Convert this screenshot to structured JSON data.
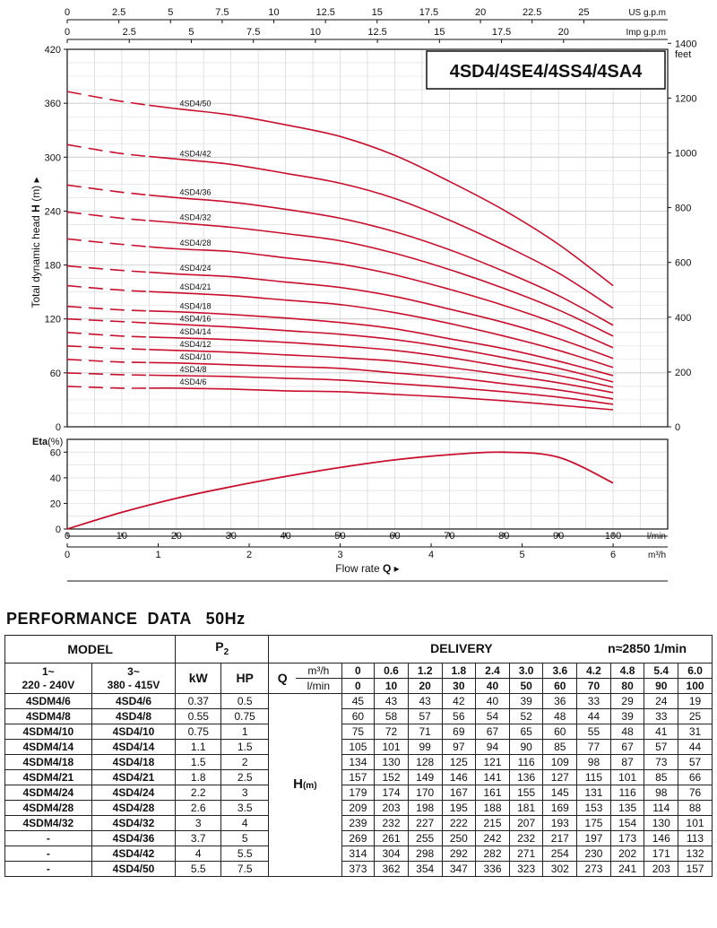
{
  "chart_data": [
    {
      "type": "line",
      "title": "4SD4/4SE4/4SS4/4SA4",
      "ylabel": "Total dynamic head H (m)",
      "ylabel_parts": {
        "text": "Total dynamic head",
        "symbol": "H",
        "unit": "(m)"
      },
      "ylim": [
        0,
        420
      ],
      "yticks": [
        "0",
        "60",
        "120",
        "180",
        "240",
        "300",
        "360",
        "420"
      ],
      "y2label": "feet",
      "y2ticks": [
        "0",
        "200",
        "400",
        "600",
        "800",
        "1000",
        "1200",
        "1400"
      ],
      "x_top_usgpm_label": "US g.p.m",
      "x_top_usgpm_ticks": [
        "0",
        "2.5",
        "5",
        "7.5",
        "10",
        "12.5",
        "15",
        "17.5",
        "20",
        "22.5",
        "25"
      ],
      "x_top_impgpm_label": "Imp g.p.m",
      "x_top_impgpm_ticks": [
        "0",
        "2.5",
        "5",
        "7.5",
        "10",
        "12.5",
        "15",
        "17.5",
        "20"
      ],
      "xlim": [
        0,
        110
      ],
      "grid": true,
      "dashed_region": [
        0,
        15
      ],
      "series": [
        {
          "name": "4SD4/50",
          "x": [
            0,
            10,
            20,
            30,
            40,
            50,
            60,
            70,
            80,
            90,
            100
          ],
          "values": [
            373,
            362,
            354,
            347,
            336,
            323,
            302,
            273,
            241,
            203,
            157
          ]
        },
        {
          "name": "4SD4/42",
          "x": [
            0,
            10,
            20,
            30,
            40,
            50,
            60,
            70,
            80,
            90,
            100
          ],
          "values": [
            314,
            304,
            298,
            292,
            282,
            271,
            254,
            230,
            202,
            171,
            132
          ]
        },
        {
          "name": "4SD4/36",
          "x": [
            0,
            10,
            20,
            30,
            40,
            50,
            60,
            70,
            80,
            90,
            100
          ],
          "values": [
            269,
            261,
            255,
            250,
            242,
            232,
            217,
            197,
            173,
            146,
            113
          ]
        },
        {
          "name": "4SD4/32",
          "x": [
            0,
            10,
            20,
            30,
            40,
            50,
            60,
            70,
            80,
            90,
            100
          ],
          "values": [
            239,
            232,
            227,
            222,
            215,
            207,
            193,
            175,
            154,
            130,
            101
          ]
        },
        {
          "name": "4SD4/28",
          "x": [
            0,
            10,
            20,
            30,
            40,
            50,
            60,
            70,
            80,
            90,
            100
          ],
          "values": [
            209,
            203,
            198,
            195,
            188,
            181,
            169,
            153,
            135,
            114,
            88
          ]
        },
        {
          "name": "4SD4/24",
          "x": [
            0,
            10,
            20,
            30,
            40,
            50,
            60,
            70,
            80,
            90,
            100
          ],
          "values": [
            179,
            174,
            170,
            167,
            161,
            155,
            145,
            131,
            116,
            98,
            76
          ]
        },
        {
          "name": "4SD4/21",
          "x": [
            0,
            10,
            20,
            30,
            40,
            50,
            60,
            70,
            80,
            90,
            100
          ],
          "values": [
            157,
            152,
            149,
            146,
            141,
            136,
            127,
            115,
            101,
            85,
            66
          ]
        },
        {
          "name": "4SD4/18",
          "x": [
            0,
            10,
            20,
            30,
            40,
            50,
            60,
            70,
            80,
            90,
            100
          ],
          "values": [
            134,
            130,
            128,
            125,
            121,
            116,
            109,
            98,
            87,
            73,
            57
          ]
        },
        {
          "name": "4SD4/16",
          "x": [
            0,
            10,
            20,
            30,
            40,
            50,
            60,
            70,
            80,
            90,
            100
          ],
          "values": [
            120,
            117,
            114,
            111,
            107,
            103,
            97,
            88,
            77,
            65,
            50
          ]
        },
        {
          "name": "4SD4/14",
          "x": [
            0,
            10,
            20,
            30,
            40,
            50,
            60,
            70,
            80,
            90,
            100
          ],
          "values": [
            105,
            101,
            99,
            97,
            94,
            90,
            85,
            77,
            67,
            57,
            44
          ]
        },
        {
          "name": "4SD4/12",
          "x": [
            0,
            10,
            20,
            30,
            40,
            50,
            60,
            70,
            80,
            90,
            100
          ],
          "values": [
            90,
            87,
            85,
            83,
            80,
            77,
            73,
            66,
            58,
            49,
            38
          ]
        },
        {
          "name": "4SD4/10",
          "x": [
            0,
            10,
            20,
            30,
            40,
            50,
            60,
            70,
            80,
            90,
            100
          ],
          "values": [
            75,
            72,
            71,
            69,
            67,
            65,
            60,
            55,
            48,
            41,
            31
          ]
        },
        {
          "name": "4SD4/8",
          "x": [
            0,
            10,
            20,
            30,
            40,
            50,
            60,
            70,
            80,
            90,
            100
          ],
          "values": [
            60,
            58,
            57,
            56,
            54,
            52,
            48,
            44,
            39,
            33,
            25
          ]
        },
        {
          "name": "4SD4/6",
          "x": [
            0,
            10,
            20,
            30,
            40,
            50,
            60,
            70,
            80,
            90,
            100
          ],
          "values": [
            45,
            43,
            43,
            42,
            40,
            39,
            36,
            33,
            29,
            24,
            19
          ]
        }
      ]
    },
    {
      "type": "line",
      "ylabel": "Eta(%)",
      "ylabel_parts": {
        "text": "Eta",
        "unit": "(%)"
      },
      "ylim": [
        0,
        70
      ],
      "yticks": [
        "0",
        "20",
        "40",
        "60"
      ],
      "xlabel": "Flow rate Q",
      "xlabel_parts": {
        "text": "Flow rate",
        "symbol": "Q"
      },
      "x_lmin_label": "l/min",
      "x_lmin_ticks": [
        "0",
        "10",
        "20",
        "30",
        "40",
        "50",
        "60",
        "70",
        "80",
        "90",
        "100"
      ],
      "x_m3h_label": "m³/h",
      "x_m3h_ticks": [
        "0",
        "1",
        "2",
        "3",
        "4",
        "5",
        "6"
      ],
      "xlim": [
        0,
        110
      ],
      "grid": true,
      "series": [
        {
          "name": "Eta",
          "x": [
            0,
            10,
            20,
            30,
            40,
            50,
            60,
            70,
            80,
            90,
            100
          ],
          "values": [
            0,
            13,
            24,
            33,
            41,
            48,
            54,
            58,
            60,
            56,
            36
          ]
        }
      ]
    }
  ],
  "performance": {
    "title": "PERFORMANCE  DATA   50Hz",
    "model_header": "MODEL",
    "p2_header": "P",
    "p2_sub": "2",
    "delivery_header": "DELIVERY",
    "speed": "n≈2850 1/min",
    "col_1ph": [
      "1~",
      "220 - 240V"
    ],
    "col_3ph": [
      "3~",
      "380 - 415V"
    ],
    "kw_label": "kW",
    "hp_label": "HP",
    "q_label": "Q",
    "unit_m3h": "m³/h",
    "unit_lmin": "l/min",
    "h_label": "H",
    "h_unit": "(m)",
    "q_m3h": [
      "0",
      "0.6",
      "1.2",
      "1.8",
      "2.4",
      "3.0",
      "3.6",
      "4.2",
      "4.8",
      "5.4",
      "6.0"
    ],
    "q_lmin": [
      "0",
      "10",
      "20",
      "30",
      "40",
      "50",
      "60",
      "70",
      "80",
      "90",
      "100"
    ],
    "rows": [
      {
        "m1": "4SDM4/6",
        "m3": "4SD4/6",
        "kw": "0.37",
        "hp": "0.5",
        "h": [
          "45",
          "43",
          "43",
          "42",
          "40",
          "39",
          "36",
          "33",
          "29",
          "24",
          "19"
        ]
      },
      {
        "m1": "4SDM4/8",
        "m3": "4SD4/8",
        "kw": "0.55",
        "hp": "0.75",
        "h": [
          "60",
          "58",
          "57",
          "56",
          "54",
          "52",
          "48",
          "44",
          "39",
          "33",
          "25"
        ]
      },
      {
        "m1": "4SDM4/10",
        "m3": "4SD4/10",
        "kw": "0.75",
        "hp": "1",
        "h": [
          "75",
          "72",
          "71",
          "69",
          "67",
          "65",
          "60",
          "55",
          "48",
          "41",
          "31"
        ]
      },
      {
        "m1": "4SDM4/14",
        "m3": "4SD4/14",
        "kw": "1.1",
        "hp": "1.5",
        "h": [
          "105",
          "101",
          "99",
          "97",
          "94",
          "90",
          "85",
          "77",
          "67",
          "57",
          "44"
        ]
      },
      {
        "m1": "4SDM4/18",
        "m3": "4SD4/18",
        "kw": "1.5",
        "hp": "2",
        "h": [
          "134",
          "130",
          "128",
          "125",
          "121",
          "116",
          "109",
          "98",
          "87",
          "73",
          "57"
        ]
      },
      {
        "m1": "4SDM4/21",
        "m3": "4SD4/21",
        "kw": "1.8",
        "hp": "2.5",
        "h": [
          "157",
          "152",
          "149",
          "146",
          "141",
          "136",
          "127",
          "115",
          "101",
          "85",
          "66"
        ]
      },
      {
        "m1": "4SDM4/24",
        "m3": "4SD4/24",
        "kw": "2.2",
        "hp": "3",
        "h": [
          "179",
          "174",
          "170",
          "167",
          "161",
          "155",
          "145",
          "131",
          "116",
          "98",
          "76"
        ]
      },
      {
        "m1": "4SDM4/28",
        "m3": "4SD4/28",
        "kw": "2.6",
        "hp": "3.5",
        "h": [
          "209",
          "203",
          "198",
          "195",
          "188",
          "181",
          "169",
          "153",
          "135",
          "114",
          "88"
        ]
      },
      {
        "m1": "4SDM4/32",
        "m3": "4SD4/32",
        "kw": "3",
        "hp": "4",
        "h": [
          "239",
          "232",
          "227",
          "222",
          "215",
          "207",
          "193",
          "175",
          "154",
          "130",
          "101"
        ]
      },
      {
        "m1": "-",
        "m3": "4SD4/36",
        "kw": "3.7",
        "hp": "5",
        "h": [
          "269",
          "261",
          "255",
          "250",
          "242",
          "232",
          "217",
          "197",
          "173",
          "146",
          "113"
        ]
      },
      {
        "m1": "-",
        "m3": "4SD4/42",
        "kw": "4",
        "hp": "5.5",
        "h": [
          "314",
          "304",
          "298",
          "292",
          "282",
          "271",
          "254",
          "230",
          "202",
          "171",
          "132"
        ]
      },
      {
        "m1": "-",
        "m3": "4SD4/50",
        "kw": "5.5",
        "hp": "7.5",
        "h": [
          "373",
          "362",
          "354",
          "347",
          "336",
          "323",
          "302",
          "273",
          "241",
          "203",
          "157"
        ]
      }
    ]
  }
}
